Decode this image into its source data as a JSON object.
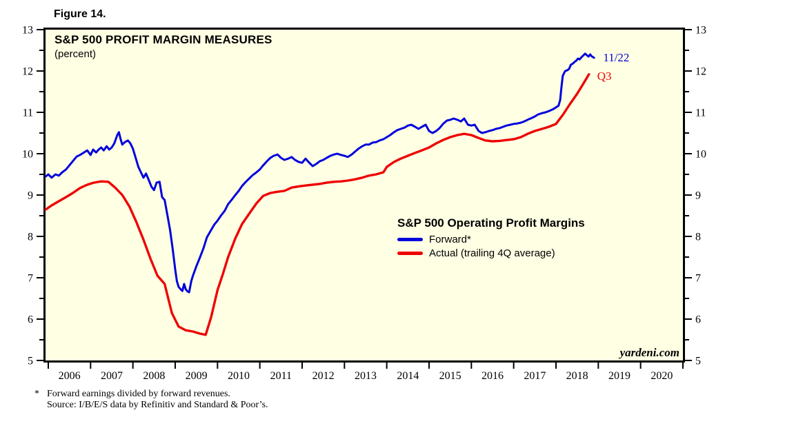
{
  "header": {
    "figure_label": "Figure 14."
  },
  "colors": {
    "background": "#FFFFE4",
    "border": "#000000",
    "forward_blue": "#0000DD",
    "actual_red": "#EE0000"
  },
  "chart_data": {
    "type": "line",
    "title": "S&P 500 PROFIT MARGIN MEASURES",
    "subtitle": "(percent)",
    "xlabel": "",
    "ylabel": "percent",
    "xlim": [
      2005.935,
      2021.0
    ],
    "ylim": [
      5,
      13
    ],
    "grid": "off",
    "y_major_ticks": [
      5,
      6,
      7,
      8,
      9,
      10,
      11,
      12,
      13
    ],
    "y_minor_step": 0.5,
    "x_years": [
      2006,
      2007,
      2008,
      2009,
      2010,
      2011,
      2012,
      2013,
      2014,
      2015,
      2016,
      2017,
      2018,
      2019,
      2020
    ],
    "legend_position": "center-right-inside",
    "legend": {
      "title": "S&P 500 Operating Profit Margins",
      "entries": [
        {
          "label": "Forward*",
          "color": "#0000DD"
        },
        {
          "label": "Actual (trailing 4Q average)",
          "color": "#EE0000"
        }
      ]
    },
    "annotations": [
      {
        "text": "11/22",
        "x": 2019.0,
        "y": 12.33,
        "color": "#0000DD"
      },
      {
        "text": "Q3",
        "x": 2018.86,
        "y": 11.88,
        "color": "#EE0000"
      }
    ],
    "watermark": "yardeni.com",
    "series": [
      {
        "name": "Forward*",
        "color": "#0000DD",
        "stroke_width": 3,
        "points": [
          [
            2005.94,
            9.45
          ],
          [
            2006.0,
            9.5
          ],
          [
            2006.08,
            9.42
          ],
          [
            2006.17,
            9.5
          ],
          [
            2006.25,
            9.47
          ],
          [
            2006.33,
            9.55
          ],
          [
            2006.42,
            9.62
          ],
          [
            2006.5,
            9.72
          ],
          [
            2006.58,
            9.82
          ],
          [
            2006.67,
            9.93
          ],
          [
            2006.75,
            9.97
          ],
          [
            2006.83,
            10.02
          ],
          [
            2006.92,
            10.08
          ],
          [
            2007.0,
            9.97
          ],
          [
            2007.06,
            10.1
          ],
          [
            2007.13,
            10.03
          ],
          [
            2007.19,
            10.1
          ],
          [
            2007.25,
            10.15
          ],
          [
            2007.31,
            10.08
          ],
          [
            2007.38,
            10.18
          ],
          [
            2007.44,
            10.1
          ],
          [
            2007.5,
            10.15
          ],
          [
            2007.56,
            10.25
          ],
          [
            2007.63,
            10.45
          ],
          [
            2007.67,
            10.52
          ],
          [
            2007.71,
            10.35
          ],
          [
            2007.75,
            10.22
          ],
          [
            2007.81,
            10.28
          ],
          [
            2007.88,
            10.32
          ],
          [
            2007.94,
            10.25
          ],
          [
            2008.0,
            10.12
          ],
          [
            2008.06,
            9.92
          ],
          [
            2008.13,
            9.68
          ],
          [
            2008.19,
            9.55
          ],
          [
            2008.25,
            9.42
          ],
          [
            2008.31,
            9.52
          ],
          [
            2008.38,
            9.35
          ],
          [
            2008.44,
            9.2
          ],
          [
            2008.5,
            9.12
          ],
          [
            2008.56,
            9.3
          ],
          [
            2008.63,
            9.32
          ],
          [
            2008.69,
            8.95
          ],
          [
            2008.75,
            8.88
          ],
          [
            2008.81,
            8.55
          ],
          [
            2008.88,
            8.15
          ],
          [
            2008.94,
            7.7
          ],
          [
            2009.0,
            7.2
          ],
          [
            2009.04,
            6.92
          ],
          [
            2009.08,
            6.78
          ],
          [
            2009.13,
            6.72
          ],
          [
            2009.17,
            6.68
          ],
          [
            2009.21,
            6.85
          ],
          [
            2009.25,
            6.72
          ],
          [
            2009.29,
            6.67
          ],
          [
            2009.33,
            6.65
          ],
          [
            2009.38,
            6.92
          ],
          [
            2009.42,
            7.05
          ],
          [
            2009.5,
            7.28
          ],
          [
            2009.58,
            7.48
          ],
          [
            2009.67,
            7.72
          ],
          [
            2009.75,
            7.98
          ],
          [
            2009.83,
            8.12
          ],
          [
            2009.92,
            8.28
          ],
          [
            2010.0,
            8.38
          ],
          [
            2010.08,
            8.5
          ],
          [
            2010.17,
            8.62
          ],
          [
            2010.25,
            8.78
          ],
          [
            2010.33,
            8.88
          ],
          [
            2010.42,
            9.0
          ],
          [
            2010.5,
            9.1
          ],
          [
            2010.58,
            9.22
          ],
          [
            2010.67,
            9.32
          ],
          [
            2010.75,
            9.4
          ],
          [
            2010.83,
            9.48
          ],
          [
            2010.92,
            9.55
          ],
          [
            2011.0,
            9.62
          ],
          [
            2011.08,
            9.72
          ],
          [
            2011.17,
            9.82
          ],
          [
            2011.25,
            9.9
          ],
          [
            2011.33,
            9.95
          ],
          [
            2011.42,
            9.98
          ],
          [
            2011.5,
            9.9
          ],
          [
            2011.58,
            9.85
          ],
          [
            2011.67,
            9.88
          ],
          [
            2011.75,
            9.92
          ],
          [
            2011.83,
            9.85
          ],
          [
            2011.92,
            9.8
          ],
          [
            2012.0,
            9.78
          ],
          [
            2012.08,
            9.88
          ],
          [
            2012.17,
            9.78
          ],
          [
            2012.25,
            9.7
          ],
          [
            2012.33,
            9.75
          ],
          [
            2012.42,
            9.82
          ],
          [
            2012.5,
            9.85
          ],
          [
            2012.58,
            9.9
          ],
          [
            2012.67,
            9.95
          ],
          [
            2012.75,
            9.98
          ],
          [
            2012.83,
            10.0
          ],
          [
            2012.92,
            9.97
          ],
          [
            2013.0,
            9.95
          ],
          [
            2013.08,
            9.92
          ],
          [
            2013.17,
            9.98
          ],
          [
            2013.25,
            10.05
          ],
          [
            2013.33,
            10.12
          ],
          [
            2013.42,
            10.18
          ],
          [
            2013.5,
            10.22
          ],
          [
            2013.58,
            10.22
          ],
          [
            2013.67,
            10.27
          ],
          [
            2013.75,
            10.28
          ],
          [
            2013.83,
            10.32
          ],
          [
            2013.92,
            10.35
          ],
          [
            2014.0,
            10.4
          ],
          [
            2014.08,
            10.45
          ],
          [
            2014.17,
            10.52
          ],
          [
            2014.25,
            10.57
          ],
          [
            2014.33,
            10.6
          ],
          [
            2014.42,
            10.63
          ],
          [
            2014.5,
            10.68
          ],
          [
            2014.58,
            10.7
          ],
          [
            2014.67,
            10.65
          ],
          [
            2014.75,
            10.6
          ],
          [
            2014.83,
            10.65
          ],
          [
            2014.92,
            10.7
          ],
          [
            2015.0,
            10.55
          ],
          [
            2015.08,
            10.5
          ],
          [
            2015.17,
            10.55
          ],
          [
            2015.25,
            10.62
          ],
          [
            2015.33,
            10.72
          ],
          [
            2015.42,
            10.8
          ],
          [
            2015.5,
            10.82
          ],
          [
            2015.58,
            10.85
          ],
          [
            2015.67,
            10.82
          ],
          [
            2015.75,
            10.78
          ],
          [
            2015.83,
            10.85
          ],
          [
            2015.92,
            10.7
          ],
          [
            2016.0,
            10.68
          ],
          [
            2016.08,
            10.7
          ],
          [
            2016.17,
            10.55
          ],
          [
            2016.25,
            10.5
          ],
          [
            2016.33,
            10.52
          ],
          [
            2016.42,
            10.55
          ],
          [
            2016.5,
            10.57
          ],
          [
            2016.58,
            10.6
          ],
          [
            2016.67,
            10.62
          ],
          [
            2016.75,
            10.65
          ],
          [
            2016.83,
            10.68
          ],
          [
            2016.92,
            10.7
          ],
          [
            2017.0,
            10.72
          ],
          [
            2017.08,
            10.73
          ],
          [
            2017.17,
            10.75
          ],
          [
            2017.25,
            10.78
          ],
          [
            2017.33,
            10.82
          ],
          [
            2017.42,
            10.86
          ],
          [
            2017.5,
            10.9
          ],
          [
            2017.58,
            10.95
          ],
          [
            2017.67,
            10.98
          ],
          [
            2017.75,
            11.0
          ],
          [
            2017.83,
            11.03
          ],
          [
            2017.92,
            11.07
          ],
          [
            2018.0,
            11.12
          ],
          [
            2018.06,
            11.16
          ],
          [
            2018.1,
            11.3
          ],
          [
            2018.13,
            11.62
          ],
          [
            2018.16,
            11.88
          ],
          [
            2018.19,
            11.95
          ],
          [
            2018.22,
            12.0
          ],
          [
            2018.27,
            12.02
          ],
          [
            2018.31,
            12.05
          ],
          [
            2018.35,
            12.15
          ],
          [
            2018.4,
            12.18
          ],
          [
            2018.44,
            12.22
          ],
          [
            2018.48,
            12.25
          ],
          [
            2018.52,
            12.3
          ],
          [
            2018.56,
            12.28
          ],
          [
            2018.6,
            12.33
          ],
          [
            2018.65,
            12.38
          ],
          [
            2018.69,
            12.42
          ],
          [
            2018.73,
            12.38
          ],
          [
            2018.77,
            12.35
          ],
          [
            2018.81,
            12.4
          ],
          [
            2018.85,
            12.35
          ],
          [
            2018.9,
            12.32
          ]
        ]
      },
      {
        "name": "Actual (trailing 4Q average)",
        "color": "#EE0000",
        "stroke_width": 3.4,
        "points": [
          [
            2005.94,
            8.65
          ],
          [
            2006.08,
            8.75
          ],
          [
            2006.25,
            8.85
          ],
          [
            2006.42,
            8.95
          ],
          [
            2006.58,
            9.05
          ],
          [
            2006.75,
            9.17
          ],
          [
            2006.92,
            9.25
          ],
          [
            2007.08,
            9.3
          ],
          [
            2007.25,
            9.33
          ],
          [
            2007.42,
            9.32
          ],
          [
            2007.58,
            9.18
          ],
          [
            2007.75,
            9.0
          ],
          [
            2007.92,
            8.72
          ],
          [
            2008.08,
            8.35
          ],
          [
            2008.25,
            7.92
          ],
          [
            2008.42,
            7.45
          ],
          [
            2008.58,
            7.05
          ],
          [
            2008.75,
            6.85
          ],
          [
            2008.92,
            6.15
          ],
          [
            2009.08,
            5.82
          ],
          [
            2009.25,
            5.73
          ],
          [
            2009.42,
            5.7
          ],
          [
            2009.58,
            5.65
          ],
          [
            2009.72,
            5.62
          ],
          [
            2009.85,
            6.05
          ],
          [
            2010.0,
            6.7
          ],
          [
            2010.13,
            7.1
          ],
          [
            2010.25,
            7.5
          ],
          [
            2010.42,
            7.95
          ],
          [
            2010.58,
            8.3
          ],
          [
            2010.75,
            8.55
          ],
          [
            2010.92,
            8.8
          ],
          [
            2011.08,
            8.98
          ],
          [
            2011.25,
            9.05
          ],
          [
            2011.42,
            9.08
          ],
          [
            2011.58,
            9.1
          ],
          [
            2011.75,
            9.18
          ],
          [
            2011.92,
            9.21
          ],
          [
            2012.08,
            9.23
          ],
          [
            2012.25,
            9.25
          ],
          [
            2012.42,
            9.27
          ],
          [
            2012.58,
            9.3
          ],
          [
            2012.75,
            9.32
          ],
          [
            2012.92,
            9.33
          ],
          [
            2013.08,
            9.35
          ],
          [
            2013.25,
            9.38
          ],
          [
            2013.42,
            9.42
          ],
          [
            2013.58,
            9.47
          ],
          [
            2013.75,
            9.5
          ],
          [
            2013.92,
            9.55
          ],
          [
            2014.0,
            9.68
          ],
          [
            2014.17,
            9.8
          ],
          [
            2014.33,
            9.88
          ],
          [
            2014.5,
            9.95
          ],
          [
            2014.67,
            10.02
          ],
          [
            2014.83,
            10.08
          ],
          [
            2015.0,
            10.15
          ],
          [
            2015.17,
            10.25
          ],
          [
            2015.33,
            10.33
          ],
          [
            2015.5,
            10.4
          ],
          [
            2015.67,
            10.45
          ],
          [
            2015.83,
            10.48
          ],
          [
            2016.0,
            10.45
          ],
          [
            2016.17,
            10.38
          ],
          [
            2016.33,
            10.32
          ],
          [
            2016.5,
            10.3
          ],
          [
            2016.67,
            10.31
          ],
          [
            2016.83,
            10.33
          ],
          [
            2017.0,
            10.35
          ],
          [
            2017.17,
            10.4
          ],
          [
            2017.33,
            10.48
          ],
          [
            2017.5,
            10.55
          ],
          [
            2017.67,
            10.6
          ],
          [
            2017.83,
            10.65
          ],
          [
            2018.0,
            10.72
          ],
          [
            2018.17,
            10.95
          ],
          [
            2018.33,
            11.2
          ],
          [
            2018.5,
            11.45
          ],
          [
            2018.65,
            11.7
          ],
          [
            2018.78,
            11.92
          ]
        ]
      }
    ]
  },
  "footnotes": {
    "marker": "*",
    "line1": "Forward earnings divided by forward revenues.",
    "line2": "Source: I/B/E/S data by Refinitiv and Standard & Poor’s."
  }
}
